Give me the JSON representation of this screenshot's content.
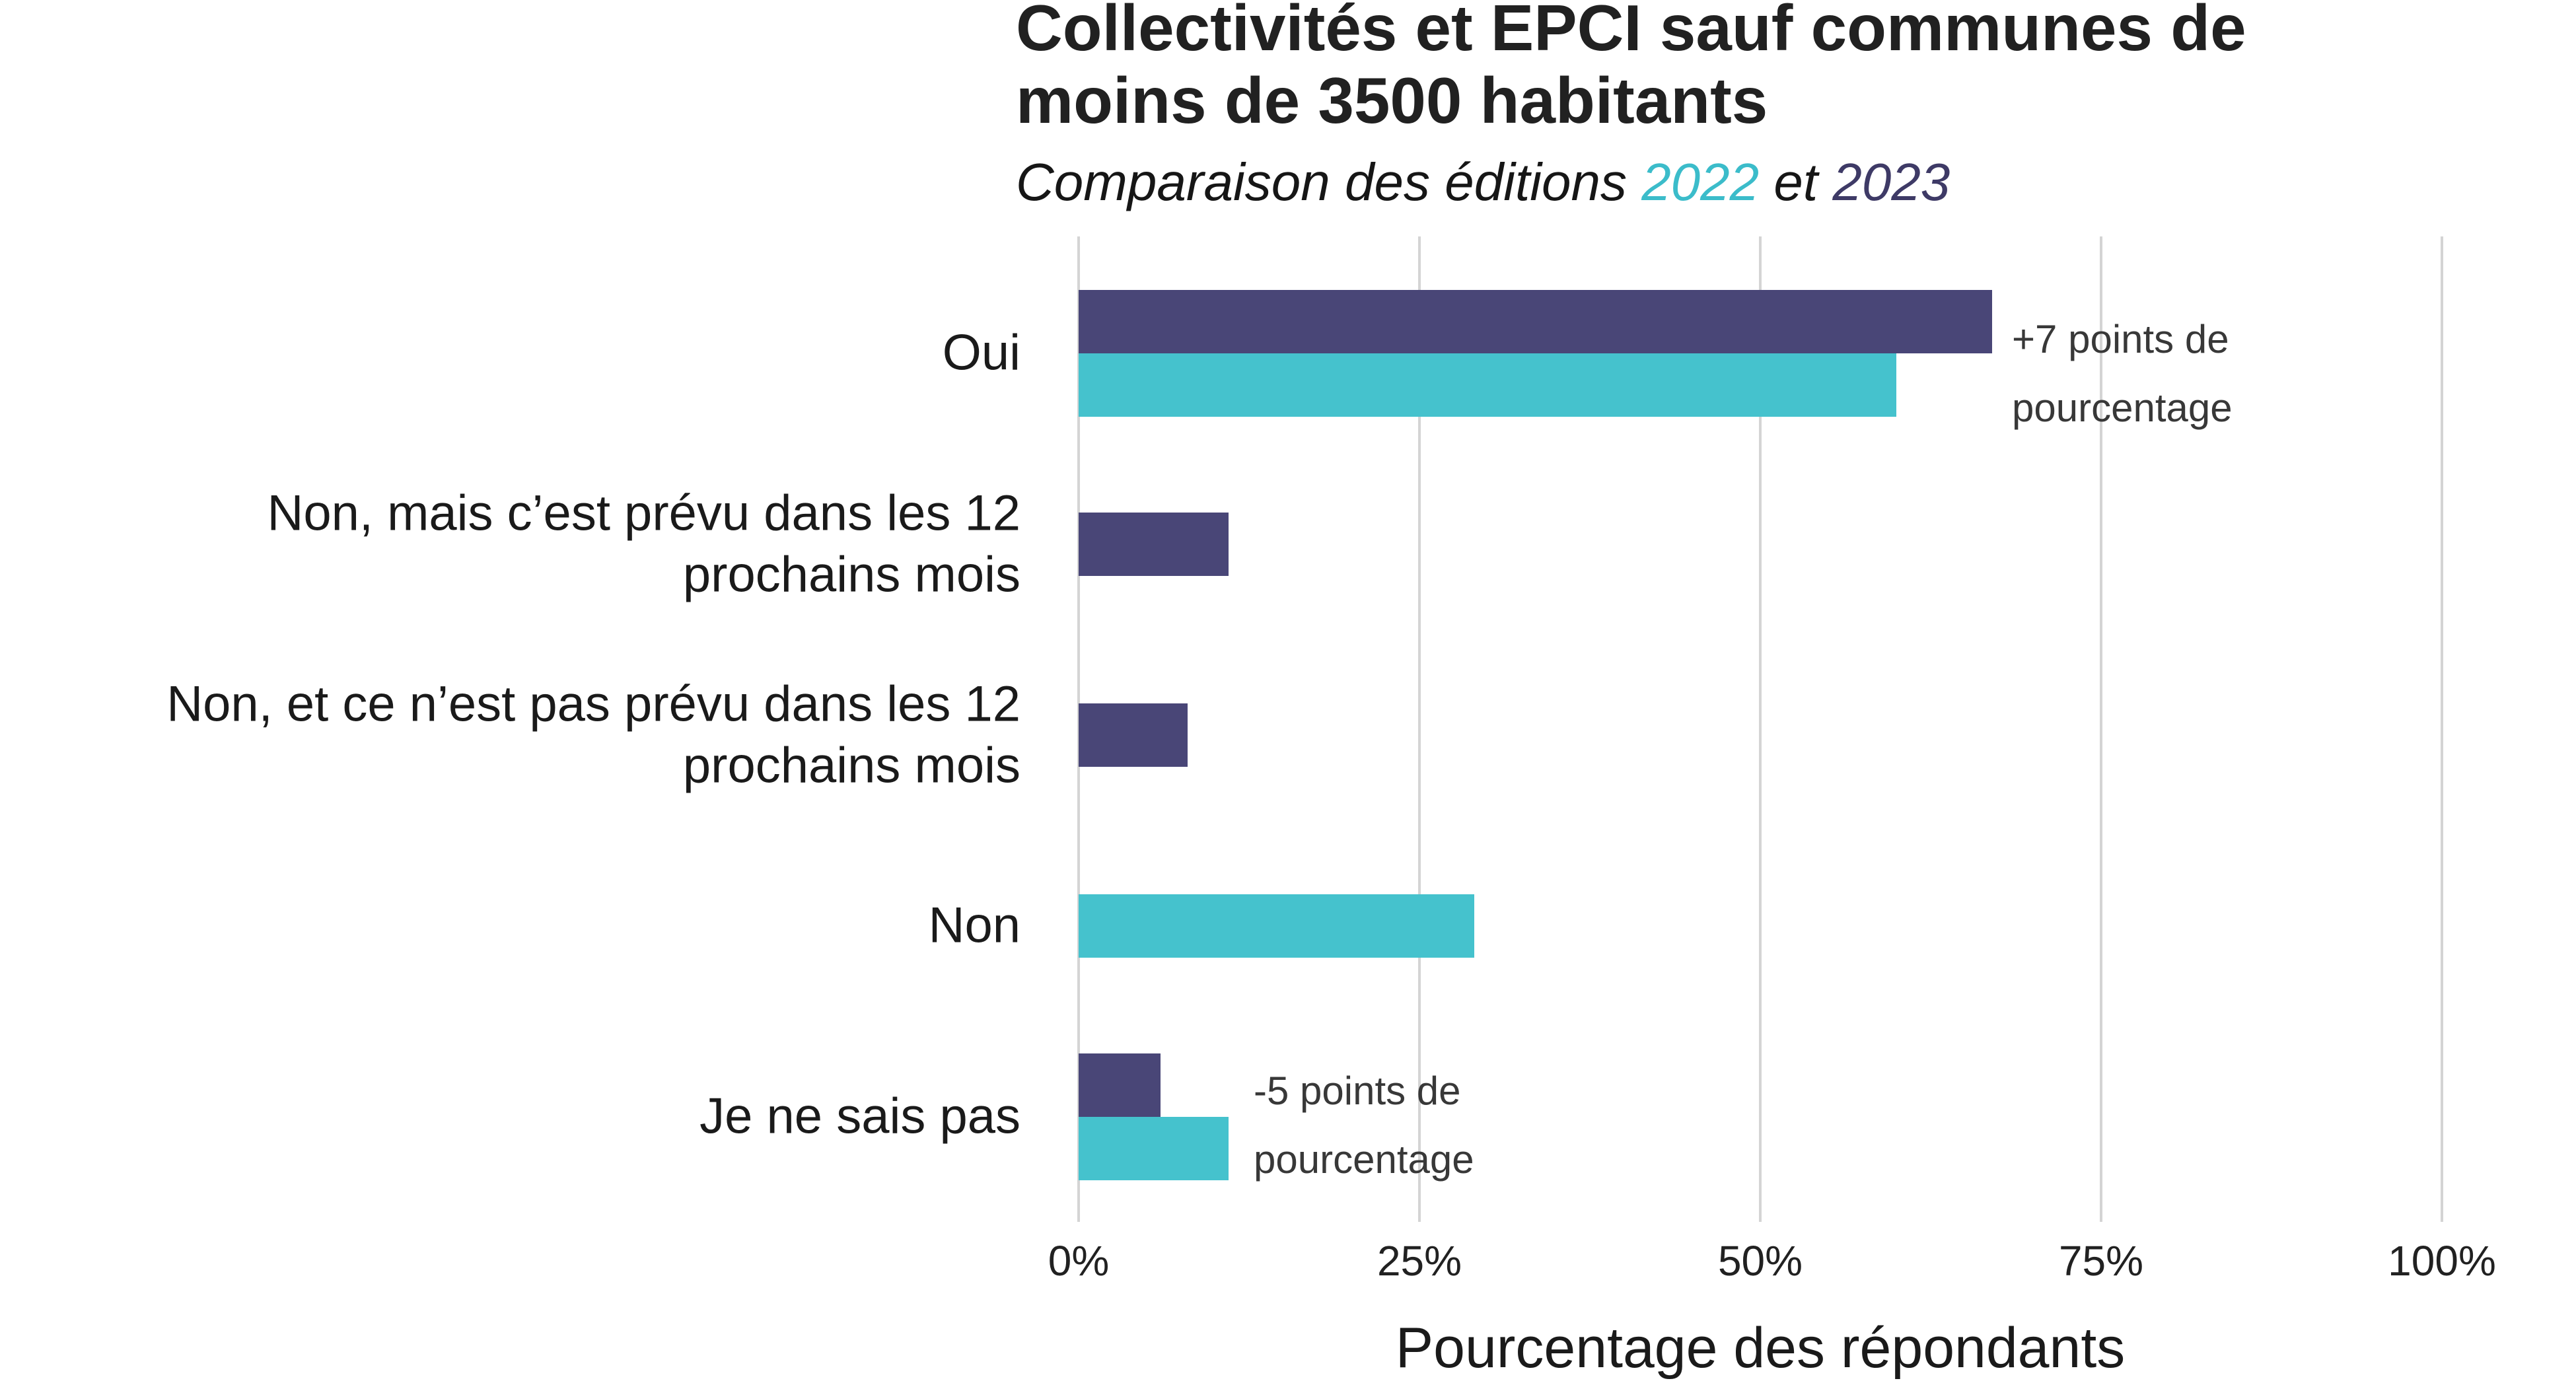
{
  "header": {
    "title_lines": [
      "Collectivités et EPCI sauf communes de",
      "moins de 3500 habitants"
    ],
    "subtitle": {
      "prefix": "Comparaison des éditions ",
      "year1": "2022",
      "middle": " et ",
      "year2": "2023"
    }
  },
  "axis": {
    "xlabel": "Pourcentage des répondants",
    "x_ticks": [
      "0%",
      "25%",
      "50%",
      "75%",
      "100%"
    ]
  },
  "chart_data": {
    "type": "bar",
    "orientation": "horizontal",
    "title": "Collectivités et EPCI sauf communes de moins de 3500 habitants",
    "subtitle": "Comparaison des éditions 2022 et 2023",
    "xlabel": "Pourcentage des répondants",
    "xlim": [
      0,
      100
    ],
    "x_tick_values": [
      0,
      25,
      50,
      75,
      100
    ],
    "x_tick_labels": [
      "0%",
      "25%",
      "50%",
      "75%",
      "100%"
    ],
    "grid": "vertical-major-only",
    "legend_position": "none (years colored in subtitle)",
    "categories": [
      "Oui",
      "Non, mais c’est prévu dans les 12 prochains mois",
      "Non, et ce n’est pas prévu dans les 12 prochains mois",
      "Non",
      "Je ne sais pas"
    ],
    "category_label_lines": [
      [
        "Oui"
      ],
      [
        "Non, mais c’est prévu dans les 12",
        "prochains mois"
      ],
      [
        "Non, et ce n’est pas prévu dans les 12",
        "prochains mois"
      ],
      [
        "Non"
      ],
      [
        "Je ne sais pas"
      ]
    ],
    "series": [
      {
        "name": "2023",
        "color": "#494677",
        "values": [
          67,
          11,
          8,
          null,
          6
        ]
      },
      {
        "name": "2022",
        "color": "#45c2cd",
        "values": [
          60,
          null,
          null,
          29,
          11
        ]
      }
    ],
    "annotations": [
      {
        "lines": [
          "+7 points de",
          "pourcentage"
        ],
        "category": "Oui"
      },
      {
        "lines": [
          "-5 points de",
          "pourcentage"
        ],
        "category": "Je ne sais pas"
      }
    ]
  },
  "colors": {
    "bar_2023": "#494677",
    "bar_2022": "#45c2cd",
    "subtitle_2022": "#3bbcca",
    "subtitle_2023": "#3e3a66",
    "gridline": "#d4d4d4",
    "title_text": "#212121",
    "annotation_text": "#383838"
  }
}
